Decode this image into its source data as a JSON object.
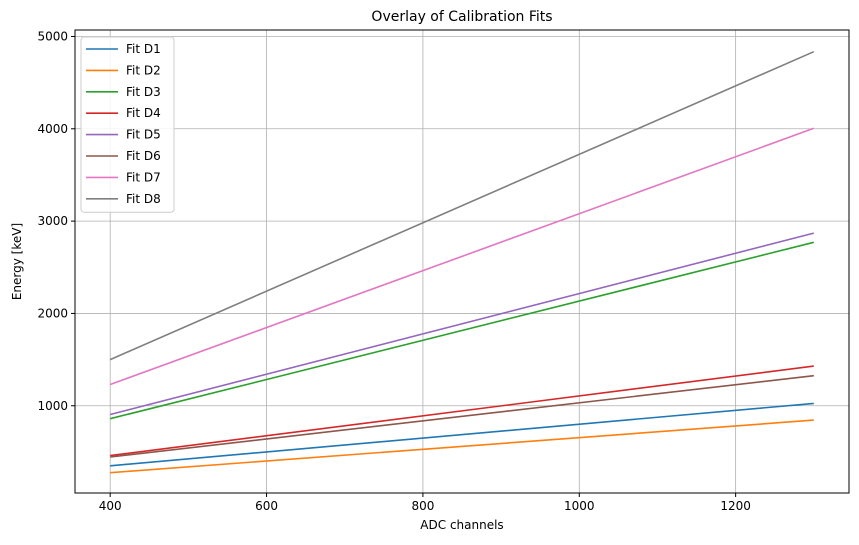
{
  "chart_data": {
    "type": "line",
    "title": "Overlay of Calibration Fits",
    "xlabel": "ADC channels",
    "ylabel": "Energy [keV]",
    "xlim": [
      355,
      1345
    ],
    "ylim": [
      55,
      5070
    ],
    "xticks": [
      400,
      600,
      800,
      1000,
      1200
    ],
    "yticks": [
      1000,
      2000,
      3000,
      4000,
      5000
    ],
    "grid": true,
    "legend_position": "upper-left",
    "x": [
      400,
      1300
    ],
    "series": [
      {
        "name": "Fit D1",
        "color": "#1f77b4",
        "values": [
          350,
          1025
        ]
      },
      {
        "name": "Fit D2",
        "color": "#ff7f0e",
        "values": [
          275,
          845
        ]
      },
      {
        "name": "Fit D3",
        "color": "#2ca02c",
        "values": [
          860,
          2770
        ]
      },
      {
        "name": "Fit D4",
        "color": "#d62728",
        "values": [
          460,
          1430
        ]
      },
      {
        "name": "Fit D5",
        "color": "#9467bd",
        "values": [
          905,
          2870
        ]
      },
      {
        "name": "Fit D6",
        "color": "#8c564b",
        "values": [
          445,
          1325
        ]
      },
      {
        "name": "Fit D7",
        "color": "#e377c2",
        "values": [
          1230,
          4005
        ]
      },
      {
        "name": "Fit D8",
        "color": "#7f7f7f",
        "values": [
          1500,
          4835
        ]
      }
    ]
  }
}
